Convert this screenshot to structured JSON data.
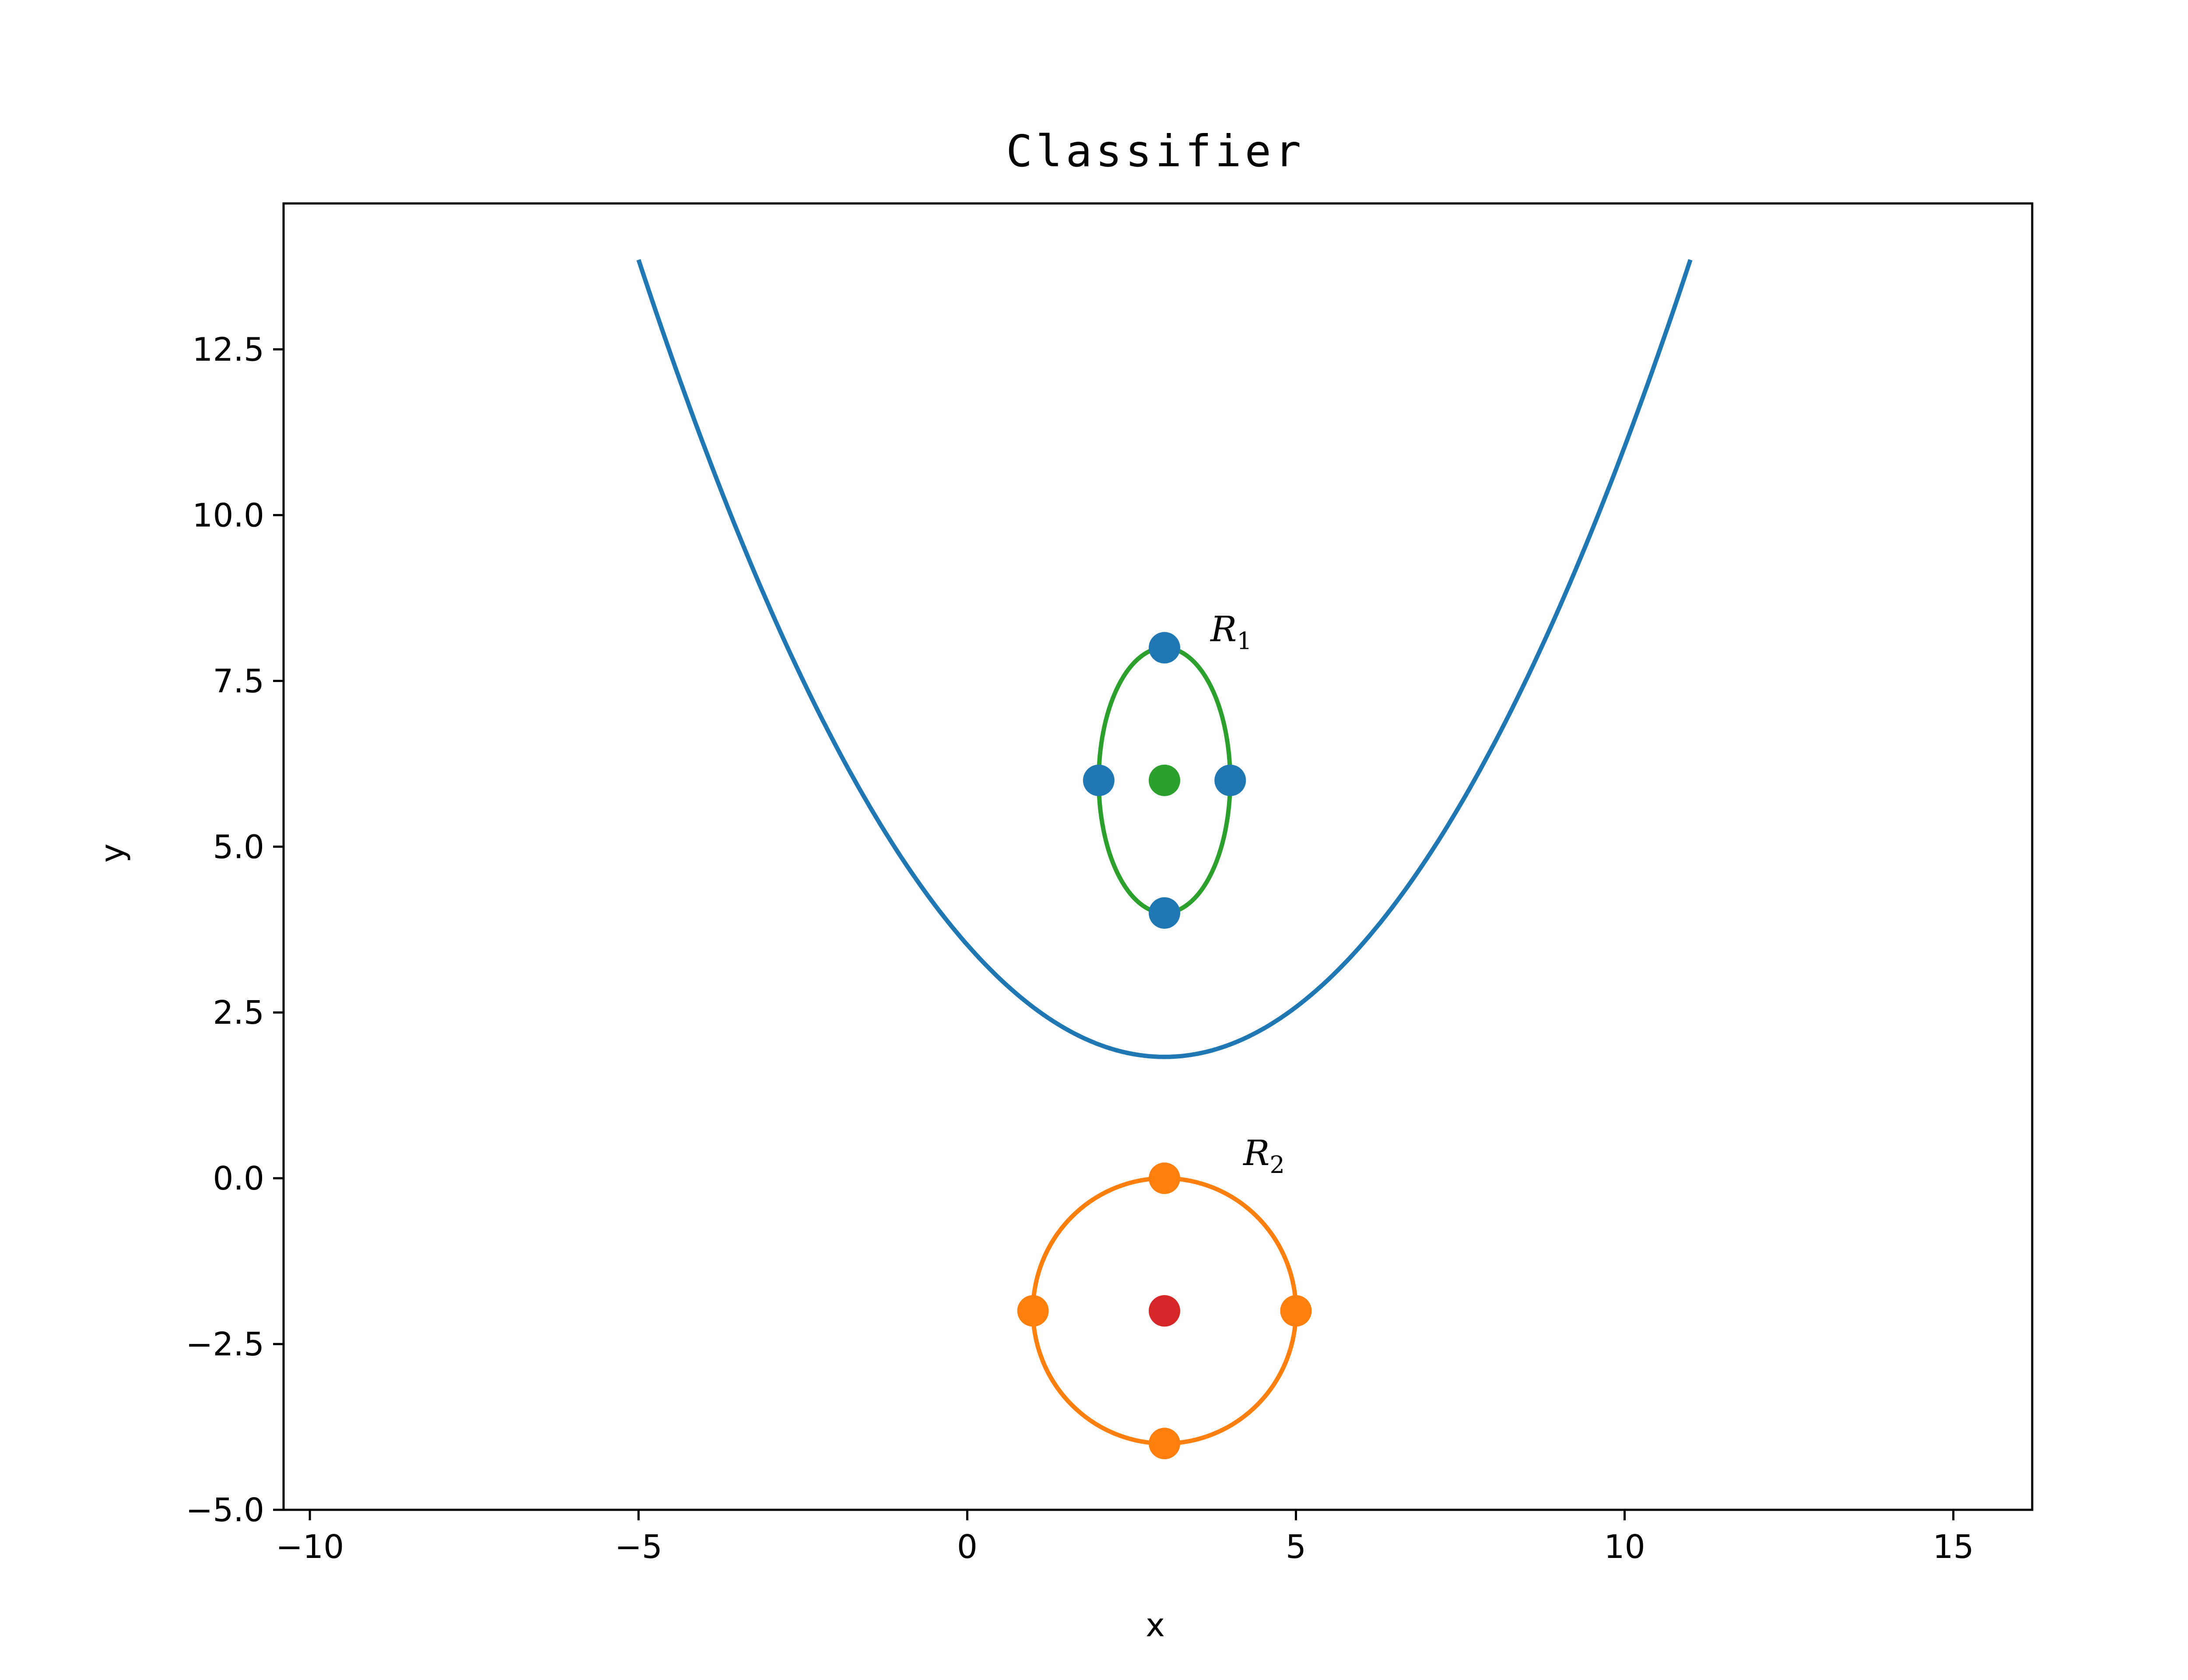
{
  "chart_data": {
    "type": "scatter",
    "title": "Classifier",
    "xlabel": "x",
    "ylabel": "y",
    "xlim": [
      -10.4,
      16.2
    ],
    "ylim": [
      -5.0,
      14.7
    ],
    "xticks": [
      -10,
      -5,
      0,
      5,
      10,
      15
    ],
    "xtick_labels": [
      "−10",
      "−5",
      "0",
      "5",
      "10",
      "15"
    ],
    "yticks": [
      -5.0,
      -2.5,
      0.0,
      2.5,
      5.0,
      7.5,
      10.0,
      12.5
    ],
    "ytick_labels": [
      "−5.0",
      "−2.5",
      "0.0",
      "2.5",
      "5.0",
      "7.5",
      "10.0",
      "12.5"
    ],
    "grid": false,
    "series": [
      {
        "kind": "line",
        "color": "#1f77b4",
        "x": [
          -5,
          -4,
          -3,
          -2,
          -1,
          0,
          1,
          2,
          3,
          4,
          5,
          6,
          7,
          8,
          9,
          10,
          11
        ],
        "y": [
          13.85,
          11.19,
          8.84,
          6.79,
          5.05,
          3.61,
          2.48,
          1.99,
          1.83,
          1.99,
          2.48,
          3.61,
          5.05,
          6.79,
          8.84,
          11.19,
          13.85
        ]
      },
      {
        "kind": "ellipse",
        "color": "#2ca02c",
        "center": [
          3,
          6
        ],
        "radii": [
          1,
          2
        ]
      },
      {
        "kind": "ellipse",
        "color": "#ff7f0e",
        "center": [
          3,
          -2
        ],
        "radii": [
          2,
          2
        ]
      },
      {
        "kind": "points",
        "color": "#1f77b4",
        "x": [
          3,
          2,
          4,
          3
        ],
        "y": [
          8,
          6,
          6,
          4
        ]
      },
      {
        "kind": "points",
        "color": "#2ca02c",
        "x": [
          3
        ],
        "y": [
          6
        ]
      },
      {
        "kind": "points",
        "color": "#ff7f0e",
        "x": [
          3,
          1,
          5,
          3
        ],
        "y": [
          0,
          -2,
          -2,
          -4
        ]
      },
      {
        "kind": "points",
        "color": "#d62728",
        "x": [
          3
        ],
        "y": [
          -2
        ]
      }
    ],
    "annotations": [
      {
        "text": "R",
        "sub": "1",
        "x": 3.7,
        "y": 8.1
      },
      {
        "text": "R",
        "sub": "2",
        "x": 4.2,
        "y": 0.2
      }
    ]
  }
}
